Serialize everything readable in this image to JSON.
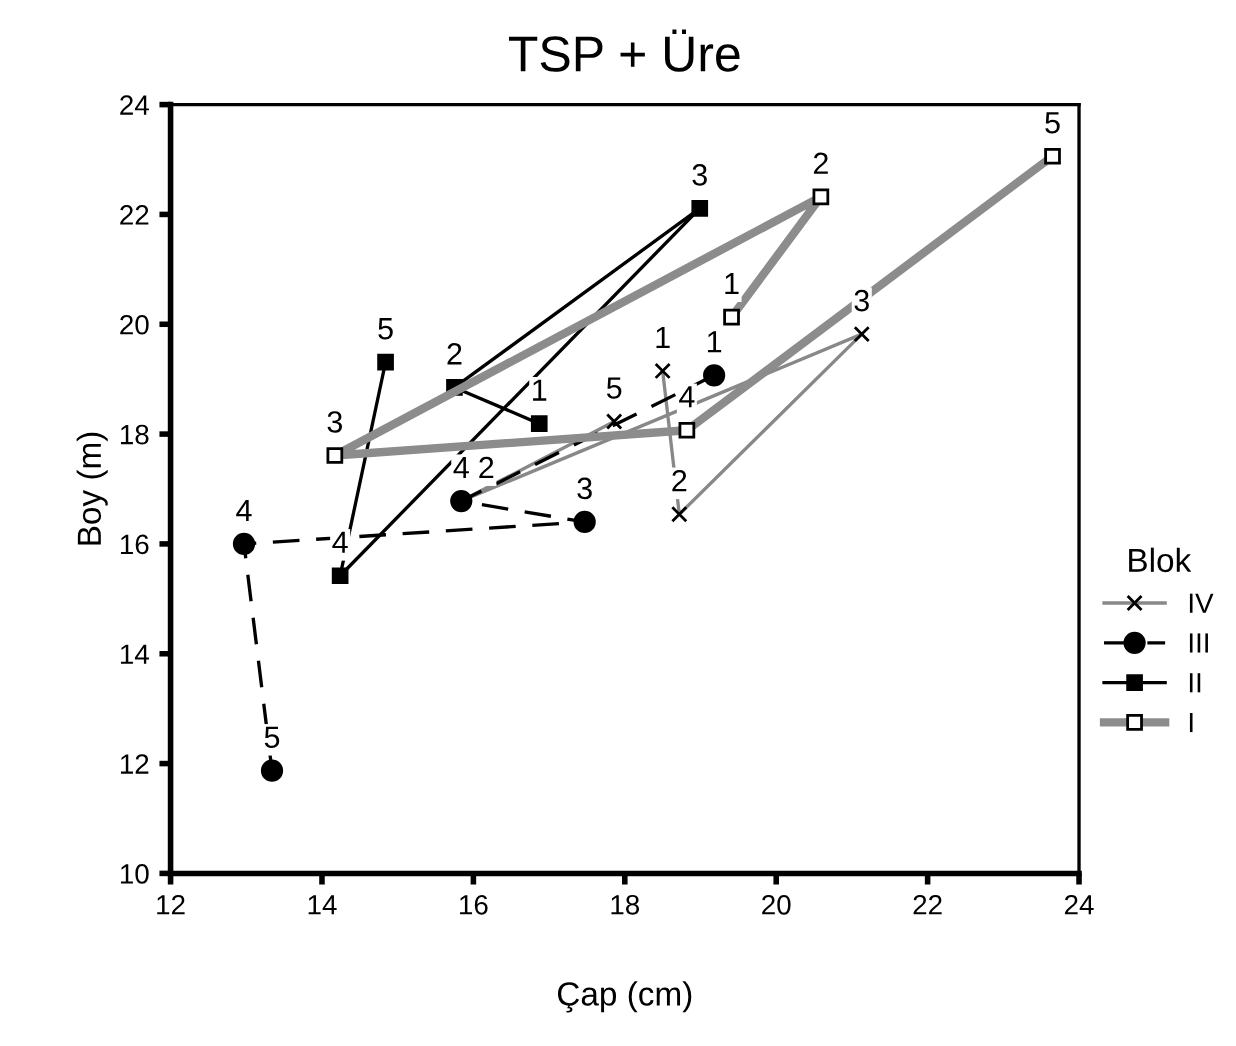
{
  "chart_data": {
    "type": "line",
    "title": "TSP + Üre",
    "xlabel": "Çap (cm)",
    "ylabel": "Boy (m)",
    "legend_title": "Blok",
    "legend": "right",
    "grid": false,
    "xlim": [
      12,
      24
    ],
    "xticks": [
      12,
      14,
      16,
      18,
      20,
      22,
      24
    ],
    "ylim": [
      10,
      24
    ],
    "yticks": [
      10,
      12,
      14,
      16,
      18,
      20,
      22,
      24
    ],
    "series": [
      {
        "name": "IV",
        "color": "#888888",
        "marker": "cross",
        "line_style": "solid",
        "x": [
          18.5,
          18.72,
          21.13,
          15.84,
          17.86
        ],
        "values": [
          19.15,
          16.54,
          19.82,
          16.78,
          18.23
        ]
      },
      {
        "name": "III",
        "color": "#000000",
        "marker": "circle",
        "line_style": "dashed",
        "x": [
          19.18,
          15.84,
          17.47,
          12.97,
          13.34
        ],
        "values": [
          19.07,
          16.78,
          16.4,
          16.0,
          11.87
        ]
      },
      {
        "name": "II",
        "color": "#000000",
        "marker": "square",
        "line_style": "solid",
        "x": [
          16.87,
          15.75,
          18.99,
          14.24,
          14.84
        ],
        "values": [
          18.19,
          18.85,
          22.11,
          15.42,
          19.31
        ]
      },
      {
        "name": "I",
        "color": "#8c8c8c",
        "marker": "square",
        "line_style": "solid",
        "x": [
          19.41,
          20.59,
          14.17,
          18.82,
          23.65
        ],
        "values": [
          20.13,
          22.32,
          17.61,
          18.07,
          23.06
        ]
      }
    ],
    "annotations": [
      {
        "text": "1",
        "x": 18.5,
        "y": 19.15
      },
      {
        "text": "2",
        "x": 18.72,
        "y": 16.54
      },
      {
        "text": "3",
        "x": 21.13,
        "y": 19.82
      },
      {
        "text": "4",
        "x": 15.84,
        "y": 16.78
      },
      {
        "text": "5",
        "x": 17.86,
        "y": 18.23
      },
      {
        "text": "1",
        "x": 19.18,
        "y": 19.07
      },
      {
        "text": "2",
        "x": 15.84,
        "y": 16.78
      },
      {
        "text": "3",
        "x": 17.47,
        "y": 16.4
      },
      {
        "text": "4",
        "x": 12.97,
        "y": 16.0
      },
      {
        "text": "5",
        "x": 13.34,
        "y": 11.87
      },
      {
        "text": "1",
        "x": 16.87,
        "y": 18.19
      },
      {
        "text": "2",
        "x": 15.75,
        "y": 18.85
      },
      {
        "text": "3",
        "x": 18.99,
        "y": 22.11
      },
      {
        "text": "4",
        "x": 14.24,
        "y": 15.42
      },
      {
        "text": "5",
        "x": 14.84,
        "y": 19.31
      },
      {
        "text": "1",
        "x": 19.41,
        "y": 20.13
      },
      {
        "text": "2",
        "x": 20.59,
        "y": 22.32
      },
      {
        "text": "3",
        "x": 14.17,
        "y": 17.61
      },
      {
        "text": "4",
        "x": 18.82,
        "y": 18.07
      },
      {
        "text": "5",
        "x": 23.65,
        "y": 23.06
      }
    ]
  }
}
